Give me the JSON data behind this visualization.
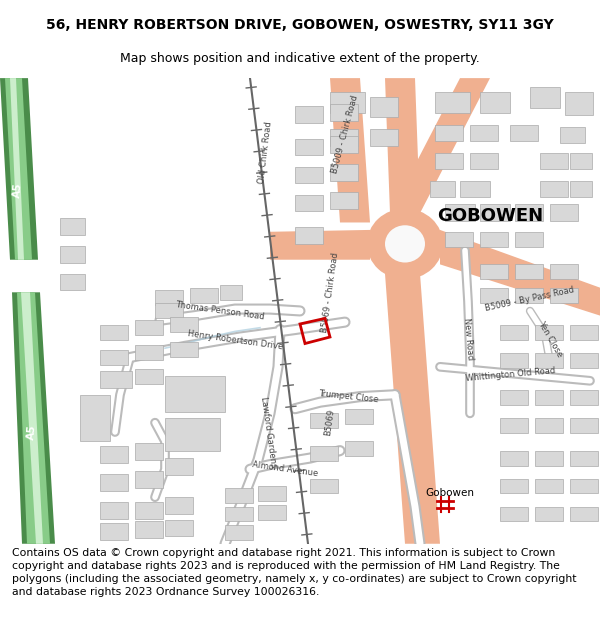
{
  "title_line1": "56, HENRY ROBERTSON DRIVE, GOBOWEN, OSWESTRY, SY11 3GY",
  "title_line2": "Map shows position and indicative extent of the property.",
  "footer_text": "Contains OS data © Crown copyright and database right 2021. This information is subject to Crown copyright and database rights 2023 and is reproduced with the permission of HM Land Registry. The polygons (including the associated geometry, namely x, y co-ordinates) are subject to Crown copyright and database rights 2023 Ordnance Survey 100026316.",
  "title_fontsize": 10,
  "subtitle_fontsize": 9,
  "footer_fontsize": 7.8,
  "bg_color": "#ffffff",
  "road_major": "#f0b090",
  "road_minor_fill": "#ffffff",
  "road_minor_edge": "#cccccc",
  "a5_dark": "#4a8c4a",
  "a5_light": "#88cc88",
  "a5_white": "#d0ecd0",
  "building_fill": "#d8d8d8",
  "building_edge": "#aaaaaa",
  "plot_edge": "#cc0000",
  "rail_color": "#555555",
  "text_color": "#000000",
  "label_color": "#444444",
  "water_color": "#aaccdd",
  "gobowen_size": 13,
  "road_label_size": 6.0
}
